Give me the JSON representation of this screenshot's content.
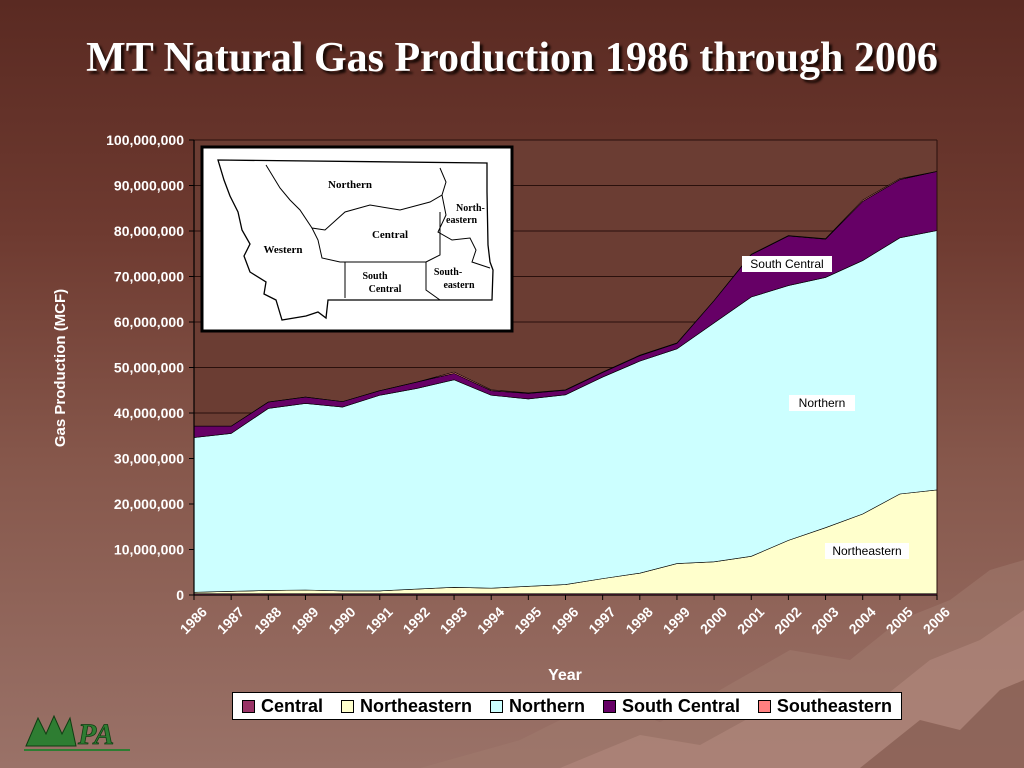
{
  "slide": {
    "title": "MT Natural Gas Production 1986 through 2006",
    "logo_text": "MPA"
  },
  "colors": {
    "central": "#993366",
    "northeastern": "#ffffcc",
    "northern": "#ccffff",
    "south_central": "#660066",
    "southeastern": "#ff8080"
  },
  "map_inset": {
    "regions": [
      "Northern",
      "North-\neastern",
      "Central",
      "Western",
      "South\nCentral",
      "South-\neastern"
    ]
  },
  "chart_data": {
    "type": "area",
    "stacked": true,
    "xlabel": "Year",
    "ylabel": "Gas Production (MCF)",
    "x": [
      "1986",
      "1987",
      "1988",
      "1989",
      "1990",
      "1991",
      "1992",
      "1993",
      "1994",
      "1995",
      "1996",
      "1997",
      "1998",
      "1999",
      "2000",
      "2001",
      "2002",
      "2003",
      "2004",
      "2005",
      "2006"
    ],
    "ylim": [
      0,
      100000000
    ],
    "yticks": [
      "0",
      "10,000,000",
      "20,000,000",
      "30,000,000",
      "40,000,000",
      "50,000,000",
      "60,000,000",
      "70,000,000",
      "80,000,000",
      "90,000,000",
      "100,000,000"
    ],
    "grid": true,
    "legend_position": "bottom",
    "series": [
      {
        "name": "Central",
        "key": "central",
        "values": [
          300000,
          300000,
          300000,
          300000,
          300000,
          300000,
          300000,
          300000,
          300000,
          300000,
          300000,
          300000,
          300000,
          300000,
          300000,
          300000,
          300000,
          300000,
          300000,
          300000,
          300000
        ]
      },
      {
        "name": "Northeastern",
        "key": "northeastern",
        "values": [
          300000,
          500000,
          700000,
          800000,
          600000,
          600000,
          1000000,
          1400000,
          1200000,
          1600000,
          2000000,
          3300000,
          4500000,
          6600000,
          7000000,
          8200000,
          11700000,
          14500000,
          17500000,
          21900000,
          22800000
        ]
      },
      {
        "name": "Northern",
        "key": "northern",
        "values": [
          34000000,
          34700000,
          40000000,
          41000000,
          40400000,
          43000000,
          44100000,
          45600000,
          42400000,
          41200000,
          41700000,
          44300000,
          46600000,
          47200000,
          52500000,
          57000000,
          56000000,
          55000000,
          55700000,
          56300000,
          57000000
        ]
      },
      {
        "name": "South Central",
        "key": "south_central",
        "values": [
          2500000,
          1600000,
          1400000,
          1400000,
          1200000,
          1000000,
          1400000,
          1400000,
          1000000,
          1200000,
          1000000,
          1000000,
          1200000,
          1200000,
          4900000,
          9300000,
          10900000,
          8400000,
          13000000,
          12800000,
          13000000
        ]
      },
      {
        "name": "Southeastern",
        "key": "southeastern",
        "values": [
          0,
          0,
          0,
          0,
          0,
          0,
          0,
          300000,
          200000,
          100000,
          100000,
          100000,
          100000,
          100000,
          0,
          100000,
          100000,
          100000,
          300000,
          200000,
          0
        ]
      }
    ],
    "annotations": [
      "South Central",
      "Northern",
      "Northeastern"
    ]
  }
}
